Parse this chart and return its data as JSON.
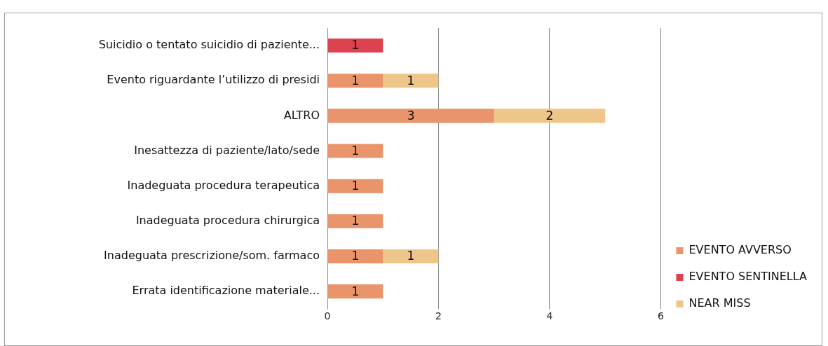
{
  "chart_data": {
    "type": "bar",
    "orientation": "horizontal",
    "stacked": true,
    "categories": [
      "Suicidio o tentato suicidio di paziente...",
      "Evento riguardante l’utilizzo di presidi",
      "ALTRO",
      "Inesattezza di paziente/lato/sede",
      "Inadeguata procedura terapeutica",
      "Inadeguata procedura chirurgica",
      "Inadeguata prescrizione/som. farmaco",
      "Errata identificazione materiale..."
    ],
    "series": [
      {
        "name": "EVENTO AVVERSO",
        "color": "#e9946a",
        "values": [
          null,
          1,
          3,
          1,
          1,
          1,
          1,
          1
        ]
      },
      {
        "name": "EVENTO SENTINELLA",
        "color": "#dc4250",
        "values": [
          1,
          null,
          null,
          null,
          null,
          null,
          null,
          null
        ]
      },
      {
        "name": "NEAR MISS",
        "color": "#efc68a",
        "values": [
          null,
          1,
          2,
          null,
          null,
          null,
          1,
          null
        ]
      }
    ],
    "xlim": [
      0,
      6
    ],
    "xticks": [
      0,
      2,
      4,
      6
    ],
    "grid": "x",
    "legend": "right",
    "data_labels": true
  }
}
